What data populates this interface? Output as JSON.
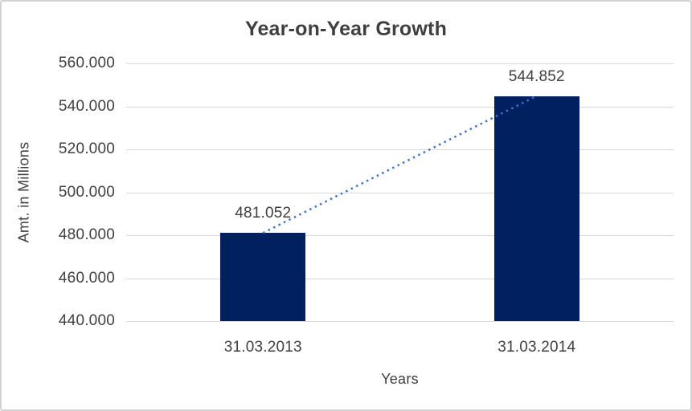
{
  "window": {
    "background": "#FFFFFF",
    "border_color": "#D2D2D2"
  },
  "chart_data": {
    "type": "bar",
    "title": "Year-on-Year Growth",
    "categories": [
      "31.03.2013",
      "31.03.2014"
    ],
    "values": [
      481.052,
      544.852
    ],
    "data_labels": [
      "481.052",
      "544.852"
    ],
    "xlabel": "Years",
    "ylabel": "Amt. in Millions",
    "ylim": [
      440,
      560
    ],
    "ytick_step": 20,
    "ytick_labels": [
      "440.000",
      "460.000",
      "480.000",
      "500.000",
      "520.000",
      "540.000",
      "560.000"
    ],
    "grid": true,
    "legend": false,
    "bar_color": "#002060",
    "gridline_color": "#D9D9D9",
    "text_color": "#404040",
    "title_color": "#3F3F3F",
    "trendline": {
      "type": "linear",
      "style": "dotted",
      "color": "#4472C4"
    }
  }
}
